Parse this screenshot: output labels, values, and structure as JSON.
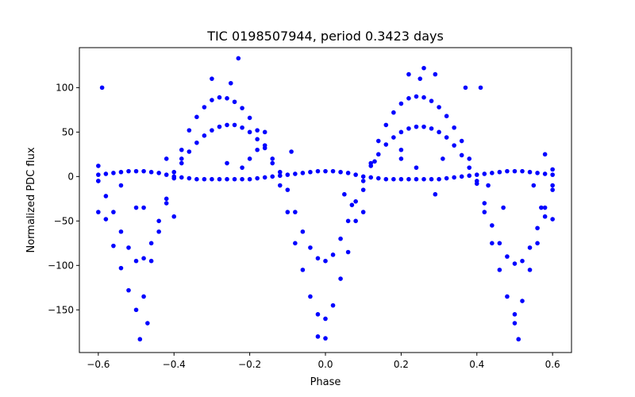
{
  "chart_data": {
    "type": "scatter",
    "title": "TIC 0198507944, period 0.3423 days",
    "xlabel": "Phase",
    "ylabel": "Normalized PDC flux",
    "xlim": [
      -0.65,
      0.65
    ],
    "ylim": [
      -198,
      145
    ],
    "xticks": [
      -0.6,
      -0.4,
      -0.2,
      0.0,
      0.2,
      0.4,
      0.6
    ],
    "xtick_labels": [
      "−0.6",
      "−0.4",
      "−0.2",
      "0.0",
      "0.2",
      "0.4",
      "0.6"
    ],
    "yticks": [
      -150,
      -100,
      -50,
      0,
      50,
      100
    ],
    "ytick_labels": [
      "−150",
      "−100",
      "−50",
      "0",
      "50",
      "100"
    ],
    "grid": false,
    "legend": "none",
    "marker_color": "#0000ff",
    "period_days": 0.3423,
    "series": [
      {
        "points": [
          [
            -0.6,
            -5
          ],
          [
            -0.58,
            -48
          ],
          [
            -0.56,
            -78
          ],
          [
            -0.54,
            -103
          ],
          [
            -0.52,
            -128
          ],
          [
            -0.5,
            -150
          ],
          [
            -0.48,
            -135
          ],
          [
            -0.46,
            -95
          ],
          [
            -0.44,
            -62
          ],
          [
            -0.42,
            -30
          ],
          [
            -0.4,
            5
          ],
          [
            -0.38,
            30
          ],
          [
            -0.36,
            52
          ],
          [
            -0.34,
            67
          ],
          [
            -0.32,
            78
          ],
          [
            -0.3,
            86
          ],
          [
            -0.28,
            89
          ],
          [
            -0.26,
            88
          ],
          [
            -0.24,
            84
          ],
          [
            -0.22,
            77
          ],
          [
            -0.2,
            66
          ],
          [
            -0.18,
            52
          ],
          [
            -0.16,
            35
          ],
          [
            -0.14,
            15
          ],
          [
            -0.12,
            -10
          ],
          [
            -0.1,
            -40
          ],
          [
            -0.08,
            -75
          ],
          [
            -0.06,
            -105
          ],
          [
            -0.04,
            -135
          ],
          [
            -0.02,
            -155
          ],
          [
            0.0,
            -160
          ],
          [
            0.02,
            -145
          ],
          [
            0.04,
            -115
          ],
          [
            0.06,
            -85
          ],
          [
            0.08,
            -50
          ],
          [
            0.1,
            -15
          ],
          [
            0.12,
            15
          ],
          [
            0.14,
            40
          ],
          [
            0.16,
            58
          ],
          [
            0.18,
            72
          ],
          [
            0.2,
            82
          ],
          [
            0.22,
            88
          ],
          [
            0.24,
            90
          ],
          [
            0.26,
            89
          ],
          [
            0.28,
            85
          ],
          [
            0.3,
            78
          ],
          [
            0.32,
            68
          ],
          [
            0.34,
            55
          ],
          [
            0.36,
            40
          ],
          [
            0.38,
            20
          ],
          [
            0.4,
            -5
          ],
          [
            0.42,
            -40
          ],
          [
            0.44,
            -75
          ],
          [
            0.46,
            -105
          ],
          [
            0.48,
            -135
          ],
          [
            0.5,
            -155
          ],
          [
            0.52,
            -140
          ],
          [
            0.54,
            -105
          ],
          [
            0.56,
            -75
          ],
          [
            0.58,
            -45
          ],
          [
            0.6,
            -15
          ],
          [
            -0.6,
            -5
          ],
          [
            -0.58,
            -22
          ],
          [
            -0.56,
            -40
          ],
          [
            -0.54,
            -62
          ],
          [
            -0.52,
            -80
          ],
          [
            -0.5,
            -95
          ],
          [
            -0.48,
            -92
          ],
          [
            -0.46,
            -75
          ],
          [
            -0.44,
            -50
          ],
          [
            -0.42,
            -25
          ],
          [
            -0.4,
            -2
          ],
          [
            -0.38,
            15
          ],
          [
            -0.36,
            28
          ],
          [
            -0.34,
            38
          ],
          [
            -0.32,
            46
          ],
          [
            -0.3,
            52
          ],
          [
            -0.28,
            56
          ],
          [
            -0.26,
            58
          ],
          [
            -0.24,
            58
          ],
          [
            -0.22,
            55
          ],
          [
            -0.2,
            50
          ],
          [
            -0.18,
            42
          ],
          [
            -0.16,
            32
          ],
          [
            -0.14,
            20
          ],
          [
            -0.12,
            5
          ],
          [
            -0.1,
            -15
          ],
          [
            -0.08,
            -40
          ],
          [
            -0.06,
            -62
          ],
          [
            -0.04,
            -80
          ],
          [
            -0.02,
            -92
          ],
          [
            0.0,
            -95
          ],
          [
            0.02,
            -88
          ],
          [
            0.04,
            -70
          ],
          [
            0.06,
            -50
          ],
          [
            0.08,
            -28
          ],
          [
            0.1,
            -5
          ],
          [
            0.12,
            12
          ],
          [
            0.14,
            25
          ],
          [
            0.16,
            36
          ],
          [
            0.18,
            44
          ],
          [
            0.2,
            50
          ],
          [
            0.22,
            54
          ],
          [
            0.24,
            56
          ],
          [
            0.26,
            56
          ],
          [
            0.28,
            54
          ],
          [
            0.3,
            50
          ],
          [
            0.32,
            44
          ],
          [
            0.34,
            35
          ],
          [
            0.36,
            24
          ],
          [
            0.38,
            10
          ],
          [
            0.4,
            -8
          ],
          [
            0.42,
            -30
          ],
          [
            0.44,
            -55
          ],
          [
            0.46,
            -75
          ],
          [
            0.48,
            -90
          ],
          [
            0.5,
            -98
          ],
          [
            0.52,
            -95
          ],
          [
            0.54,
            -80
          ],
          [
            0.56,
            -58
          ],
          [
            0.58,
            -35
          ],
          [
            0.6,
            -10
          ],
          [
            -0.6,
            2
          ],
          [
            -0.58,
            3
          ],
          [
            -0.56,
            4
          ],
          [
            -0.54,
            5
          ],
          [
            -0.52,
            6
          ],
          [
            -0.5,
            6
          ],
          [
            -0.48,
            6
          ],
          [
            -0.46,
            5
          ],
          [
            -0.44,
            4
          ],
          [
            -0.42,
            2
          ],
          [
            -0.4,
            0
          ],
          [
            -0.38,
            -1
          ],
          [
            -0.36,
            -2
          ],
          [
            -0.34,
            -3
          ],
          [
            -0.32,
            -3
          ],
          [
            -0.3,
            -3
          ],
          [
            -0.28,
            -3
          ],
          [
            -0.26,
            -3
          ],
          [
            -0.24,
            -3
          ],
          [
            -0.22,
            -3
          ],
          [
            -0.2,
            -3
          ],
          [
            -0.18,
            -2
          ],
          [
            -0.16,
            -1
          ],
          [
            -0.14,
            0
          ],
          [
            -0.12,
            1
          ],
          [
            -0.1,
            2
          ],
          [
            -0.08,
            3
          ],
          [
            -0.06,
            4
          ],
          [
            -0.04,
            5
          ],
          [
            -0.02,
            6
          ],
          [
            0.0,
            6
          ],
          [
            0.02,
            6
          ],
          [
            0.04,
            5
          ],
          [
            0.06,
            4
          ],
          [
            0.08,
            2
          ],
          [
            0.1,
            0
          ],
          [
            0.12,
            -1
          ],
          [
            0.14,
            -2
          ],
          [
            0.16,
            -3
          ],
          [
            0.18,
            -3
          ],
          [
            0.2,
            -3
          ],
          [
            0.22,
            -3
          ],
          [
            0.24,
            -3
          ],
          [
            0.26,
            -3
          ],
          [
            0.28,
            -3
          ],
          [
            0.3,
            -3
          ],
          [
            0.32,
            -2
          ],
          [
            0.34,
            -1
          ],
          [
            0.36,
            0
          ],
          [
            0.38,
            1
          ],
          [
            0.4,
            2
          ],
          [
            0.42,
            3
          ],
          [
            0.44,
            4
          ],
          [
            0.46,
            5
          ],
          [
            0.48,
            6
          ],
          [
            0.5,
            6
          ],
          [
            0.52,
            6
          ],
          [
            0.54,
            5
          ],
          [
            0.56,
            4
          ],
          [
            0.58,
            3
          ],
          [
            0.6,
            2
          ],
          [
            -0.59,
            100
          ],
          [
            -0.6,
            12
          ],
          [
            -0.6,
            -40
          ],
          [
            -0.5,
            -35
          ],
          [
            -0.48,
            -35
          ],
          [
            -0.54,
            -10
          ],
          [
            -0.47,
            -165
          ],
          [
            -0.49,
            -183
          ],
          [
            -0.23,
            133
          ],
          [
            -0.3,
            110
          ],
          [
            -0.25,
            105
          ],
          [
            -0.18,
            30
          ],
          [
            -0.2,
            20
          ],
          [
            -0.26,
            15
          ],
          [
            -0.22,
            10
          ],
          [
            -0.16,
            50
          ],
          [
            -0.4,
            -45
          ],
          [
            -0.42,
            20
          ],
          [
            -0.38,
            20
          ],
          [
            -0.09,
            28
          ],
          [
            0.0,
            -182
          ],
          [
            -0.02,
            -180
          ],
          [
            0.07,
            -32
          ],
          [
            0.05,
            -20
          ],
          [
            0.1,
            -40
          ],
          [
            0.13,
            17
          ],
          [
            0.26,
            122
          ],
          [
            0.22,
            115
          ],
          [
            0.25,
            110
          ],
          [
            0.29,
            115
          ],
          [
            0.37,
            100
          ],
          [
            0.41,
            100
          ],
          [
            0.2,
            20
          ],
          [
            0.24,
            10
          ],
          [
            0.31,
            20
          ],
          [
            0.2,
            30
          ],
          [
            0.29,
            -20
          ],
          [
            0.51,
            -183
          ],
          [
            0.5,
            -165
          ],
          [
            0.43,
            -10
          ],
          [
            0.47,
            -35
          ],
          [
            0.55,
            -10
          ],
          [
            0.57,
            -35
          ],
          [
            0.6,
            -48
          ],
          [
            0.58,
            25
          ],
          [
            0.6,
            8
          ]
        ]
      }
    ]
  }
}
